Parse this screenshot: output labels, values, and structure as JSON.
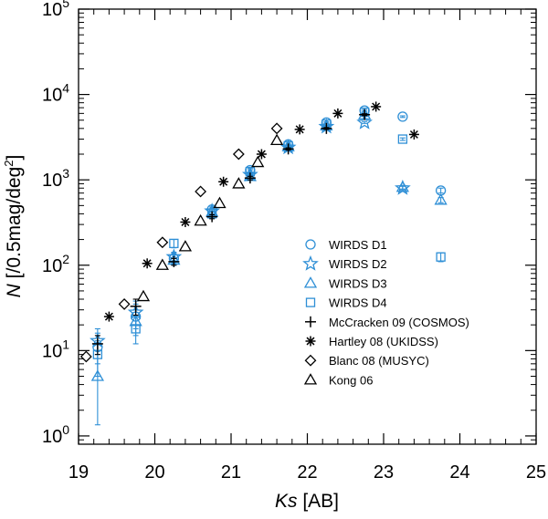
{
  "chart_data": {
    "type": "scatter",
    "title": "",
    "xlabel_italic": "Ks",
    "xlabel_rest": " [AB]",
    "ylabel_italic": "N",
    "ylabel_rest": " [/0.5mag/deg",
    "ylabel_sup": "2",
    "ylabel_close": "]",
    "xlim": [
      19,
      25
    ],
    "ylim": [
      0.8,
      100000
    ],
    "yscale": "log",
    "x_ticks": [
      19,
      20,
      21,
      22,
      23,
      24,
      25
    ],
    "x_tick_labels": [
      "19",
      "20",
      "21",
      "22",
      "23",
      "24",
      "25"
    ],
    "y_ticks": [
      1,
      10,
      100,
      1000,
      10000,
      100000
    ],
    "y_tick_labels": [
      {
        "base": "10",
        "exp": "0"
      },
      {
        "base": "10",
        "exp": "1"
      },
      {
        "base": "10",
        "exp": "2"
      },
      {
        "base": "10",
        "exp": "3"
      },
      {
        "base": "10",
        "exp": "4"
      },
      {
        "base": "10",
        "exp": "5"
      }
    ],
    "legend_position": "center-right",
    "series": [
      {
        "name": "WIRDS D1",
        "marker": "circle",
        "color": "#2e8fd6",
        "points": [
          {
            "x": 19.25,
            "y": 11,
            "err": [
              7,
              16
            ]
          },
          {
            "x": 19.75,
            "y": 25,
            "err": [
              18,
              35
            ]
          },
          {
            "x": 20.25,
            "y": 120,
            "err": [
              105,
              138
            ]
          },
          {
            "x": 20.75,
            "y": 450,
            "err": [
              420,
              480
            ]
          },
          {
            "x": 21.25,
            "y": 1300,
            "err": [
              1240,
              1360
            ]
          },
          {
            "x": 21.75,
            "y": 2600,
            "err": [
              2520,
              2680
            ]
          },
          {
            "x": 22.25,
            "y": 4700,
            "err": [
              4600,
              4800
            ]
          },
          {
            "x": 22.75,
            "y": 6500,
            "err": [
              6350,
              6650
            ]
          },
          {
            "x": 23.25,
            "y": 5500,
            "err": [
              5380,
              5620
            ]
          },
          {
            "x": 23.75,
            "y": 750,
            "err": [
              700,
              800
            ]
          }
        ]
      },
      {
        "name": "WIRDS D2",
        "marker": "star",
        "color": "#2e8fd6",
        "points": [
          {
            "x": 19.25,
            "y": 13,
            "err": [
              9,
              18
            ]
          },
          {
            "x": 19.75,
            "y": 28,
            "err": [
              20,
              38
            ]
          },
          {
            "x": 20.25,
            "y": 125,
            "err": [
              110,
              142
            ]
          },
          {
            "x": 20.75,
            "y": 430,
            "err": [
              400,
              460
            ]
          },
          {
            "x": 21.25,
            "y": 1150,
            "err": [
              1090,
              1210
            ]
          },
          {
            "x": 21.75,
            "y": 2400,
            "err": [
              2320,
              2480
            ]
          },
          {
            "x": 22.25,
            "y": 4200,
            "err": [
              4100,
              4300
            ]
          },
          {
            "x": 22.75,
            "y": 4700,
            "err": [
              4580,
              4820
            ]
          },
          {
            "x": 23.25,
            "y": 800,
            "err": [
              760,
              840
            ]
          }
        ]
      },
      {
        "name": "WIRDS D3",
        "marker": "triangle",
        "color": "#2e8fd6",
        "points": [
          {
            "x": 19.25,
            "y": 5,
            "err": [
              1.35,
              10
            ]
          },
          {
            "x": 19.75,
            "y": 22,
            "err": [
              15,
              30
            ]
          },
          {
            "x": 20.25,
            "y": 115,
            "err": [
              100,
              132
            ]
          },
          {
            "x": 20.75,
            "y": 420,
            "err": [
              390,
              450
            ]
          },
          {
            "x": 21.25,
            "y": 1100,
            "err": [
              1040,
              1160
            ]
          },
          {
            "x": 21.75,
            "y": 2450,
            "err": [
              2370,
              2530
            ]
          },
          {
            "x": 22.25,
            "y": 4300,
            "err": [
              4200,
              4400
            ]
          },
          {
            "x": 22.75,
            "y": 5800,
            "err": [
              5650,
              5950
            ]
          },
          {
            "x": 23.25,
            "y": 820,
            "err": [
              780,
              860
            ]
          },
          {
            "x": 23.75,
            "y": 580,
            "err": [
              540,
              620
            ]
          }
        ]
      },
      {
        "name": "WIRDS D4",
        "marker": "square",
        "color": "#2e8fd6",
        "points": [
          {
            "x": 19.25,
            "y": 9,
            "err": [
              5,
              13
            ]
          },
          {
            "x": 19.75,
            "y": 18,
            "err": [
              12,
              25
            ]
          },
          {
            "x": 20.25,
            "y": 180,
            "err": [
              160,
              200
            ]
          },
          {
            "x": 20.75,
            "y": 400,
            "err": [
              370,
              430
            ]
          },
          {
            "x": 21.25,
            "y": 1250,
            "err": [
              1190,
              1310
            ]
          },
          {
            "x": 21.75,
            "y": 2500,
            "err": [
              2420,
              2580
            ]
          },
          {
            "x": 22.25,
            "y": 4500,
            "err": [
              4400,
              4600
            ]
          },
          {
            "x": 22.75,
            "y": 6200,
            "err": [
              6050,
              6350
            ]
          },
          {
            "x": 23.25,
            "y": 3000,
            "err": [
              2900,
              3100
            ]
          },
          {
            "x": 23.75,
            "y": 125,
            "err": [
              110,
              140
            ]
          }
        ]
      },
      {
        "name": "McCracken 09 (COSMOS)",
        "marker": "plus",
        "color": "#000000",
        "points": [
          {
            "x": 19.25,
            "y": 12,
            "err": [
              9,
              15
            ]
          },
          {
            "x": 19.75,
            "y": 33,
            "err": [
              26,
              40
            ]
          },
          {
            "x": 20.25,
            "y": 110,
            "err": [
              100,
              120
            ]
          },
          {
            "x": 20.75,
            "y": 370,
            "err": [
              350,
              390
            ]
          },
          {
            "x": 21.25,
            "y": 1050,
            "err": [
              1000,
              1100
            ]
          },
          {
            "x": 21.75,
            "y": 2300,
            "err": [
              2230,
              2370
            ]
          },
          {
            "x": 22.25,
            "y": 4000,
            "err": [
              3900,
              4100
            ]
          },
          {
            "x": 22.75,
            "y": 5800,
            "err": [
              5650,
              5950
            ]
          }
        ]
      },
      {
        "name": "Hartley 08 (UKIDSS)",
        "marker": "asterisk",
        "color": "#000000",
        "points": [
          {
            "x": 19.4,
            "y": 25
          },
          {
            "x": 19.9,
            "y": 105
          },
          {
            "x": 20.4,
            "y": 320
          },
          {
            "x": 20.9,
            "y": 950
          },
          {
            "x": 21.4,
            "y": 2000
          },
          {
            "x": 21.9,
            "y": 3900
          },
          {
            "x": 22.4,
            "y": 6000
          },
          {
            "x": 22.9,
            "y": 7200
          },
          {
            "x": 23.4,
            "y": 3400
          }
        ]
      },
      {
        "name": "Blanc 08 (MUSYC)",
        "marker": "diamond",
        "color": "#000000",
        "points": [
          {
            "x": 19.1,
            "y": 8.5
          },
          {
            "x": 19.6,
            "y": 35
          },
          {
            "x": 20.1,
            "y": 185
          },
          {
            "x": 20.6,
            "y": 730
          },
          {
            "x": 21.1,
            "y": 2000
          },
          {
            "x": 21.6,
            "y": 4000
          }
        ]
      },
      {
        "name": "Kong 06",
        "marker": "triangle-open",
        "color": "#000000",
        "points": [
          {
            "x": 19.85,
            "y": 43
          },
          {
            "x": 20.1,
            "y": 100
          },
          {
            "x": 20.4,
            "y": 165
          },
          {
            "x": 20.6,
            "y": 330
          },
          {
            "x": 20.85,
            "y": 530
          },
          {
            "x": 21.1,
            "y": 900
          },
          {
            "x": 21.35,
            "y": 1600
          },
          {
            "x": 21.6,
            "y": 2900
          }
        ]
      }
    ]
  }
}
